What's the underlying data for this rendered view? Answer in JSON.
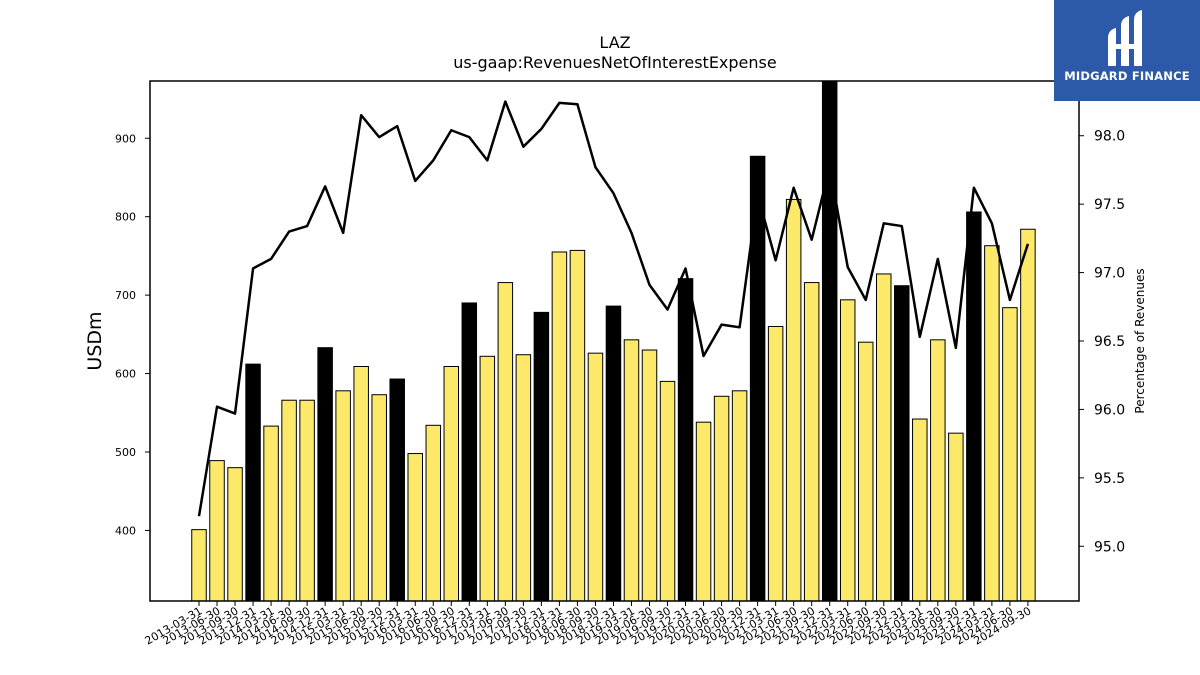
{
  "chart_data": {
    "type": "bar",
    "title": "LAZ",
    "subtitle": "us-gaap:RevenuesNetOfInterestExpense",
    "ylabel": "USDm",
    "y2label": "Percentage of Revenues",
    "ylim": [
      310,
      973
    ],
    "y2lim": [
      94.6,
      98.4
    ],
    "yticks": [
      400,
      500,
      600,
      700,
      800,
      900
    ],
    "y2ticks": [
      "95.0",
      "95.5",
      "96.0",
      "96.5",
      "97.0",
      "97.5",
      "98.0"
    ],
    "categories": [
      "2013-03-31",
      "2013-06-30",
      "2013-09-30",
      "2013-12-31",
      "2014-03-31",
      "2014-06-30",
      "2014-09-30",
      "2014-12-31",
      "2015-03-31",
      "2015-06-30",
      "2015-09-30",
      "2015-12-31",
      "2016-03-31",
      "2016-06-30",
      "2016-09-30",
      "2016-12-31",
      "2017-03-31",
      "2017-06-30",
      "2017-09-30",
      "2017-12-31",
      "2018-03-31",
      "2018-06-30",
      "2018-09-30",
      "2018-12-31",
      "2019-03-31",
      "2019-06-30",
      "2019-09-30",
      "2019-12-31",
      "2020-03-31",
      "2020-06-30",
      "2020-09-30",
      "2020-12-31",
      "2021-03-31",
      "2021-06-30",
      "2021-09-30",
      "2021-12-31",
      "2022-03-31",
      "2022-06-30",
      "2022-09-30",
      "2022-12-31",
      "2023-03-31",
      "2023-06-30",
      "2023-09-30",
      "2023-12-31",
      "2024-03-31",
      "2024-06-30",
      "2024-09-30"
    ],
    "series": [
      {
        "kind": "bar",
        "values": [
          401,
          489,
          480,
          612,
          533,
          566,
          566,
          633,
          578,
          609,
          573,
          593,
          498,
          534,
          609,
          690,
          622,
          716,
          624,
          678,
          755,
          757,
          626,
          686,
          643,
          630,
          590,
          721,
          538,
          571,
          578,
          877,
          660,
          822,
          716,
          973,
          694,
          640,
          727,
          712,
          542,
          643,
          524,
          806,
          763,
          684,
          784
        ],
        "highlight_year_end": true
      },
      {
        "kind": "line",
        "axis": "right",
        "values": [
          95.22,
          96.02,
          95.97,
          97.03,
          97.1,
          97.3,
          97.34,
          97.63,
          97.29,
          98.15,
          97.99,
          98.07,
          97.67,
          97.82,
          98.04,
          97.99,
          97.82,
          98.25,
          97.92,
          98.05,
          98.24,
          98.23,
          97.77,
          97.58,
          97.29,
          96.91,
          96.73,
          97.03,
          96.39,
          96.62,
          96.6,
          97.57,
          97.09,
          97.62,
          97.24,
          97.77,
          97.04,
          96.8,
          97.36,
          97.34,
          96.53,
          97.1,
          96.45,
          97.62,
          97.36,
          96.8,
          97.21
        ]
      }
    ],
    "colors": {
      "bar": "#fce96a",
      "bar_highlight": "#000000",
      "line": "#000000"
    },
    "grid": false
  },
  "logo": {
    "text": "MIDGARD FINANCE"
  }
}
